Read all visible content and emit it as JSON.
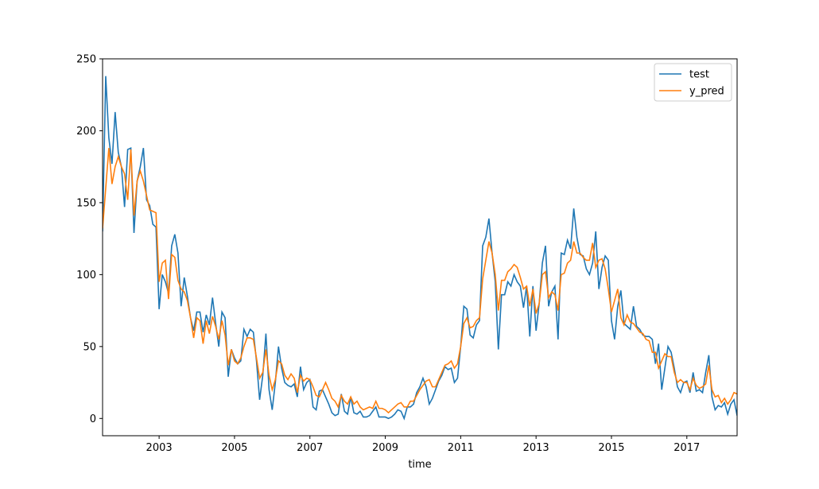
{
  "chart_data": {
    "type": "line",
    "xlabel": "time",
    "x": [
      "2001-07",
      "2001-08",
      "2001-09",
      "2001-10",
      "2001-11",
      "2001-12",
      "2002-01",
      "2002-02",
      "2002-03",
      "2002-04",
      "2002-05",
      "2002-06",
      "2002-07",
      "2002-08",
      "2002-09",
      "2002-10",
      "2002-11",
      "2002-12",
      "2003-01",
      "2003-02",
      "2003-03",
      "2003-04",
      "2003-05",
      "2003-06",
      "2003-07",
      "2003-08",
      "2003-09",
      "2003-10",
      "2003-11",
      "2003-12",
      "2004-01",
      "2004-02",
      "2004-03",
      "2004-04",
      "2004-05",
      "2004-06",
      "2004-07",
      "2004-08",
      "2004-09",
      "2004-10",
      "2004-11",
      "2004-12",
      "2005-01",
      "2005-02",
      "2005-03",
      "2005-04",
      "2005-05",
      "2005-06",
      "2005-07",
      "2005-08",
      "2005-09",
      "2005-10",
      "2005-11",
      "2005-12",
      "2006-01",
      "2006-02",
      "2006-03",
      "2006-04",
      "2006-05",
      "2006-06",
      "2006-07",
      "2006-08",
      "2006-09",
      "2006-10",
      "2006-11",
      "2006-12",
      "2007-01",
      "2007-02",
      "2007-03",
      "2007-04",
      "2007-05",
      "2007-06",
      "2007-07",
      "2007-08",
      "2007-09",
      "2007-10",
      "2007-11",
      "2007-12",
      "2008-01",
      "2008-02",
      "2008-03",
      "2008-04",
      "2008-05",
      "2008-06",
      "2008-07",
      "2008-08",
      "2008-09",
      "2008-10",
      "2008-11",
      "2008-12",
      "2009-01",
      "2009-02",
      "2009-03",
      "2009-04",
      "2009-05",
      "2009-06",
      "2009-07",
      "2009-08",
      "2009-09",
      "2009-10",
      "2009-11",
      "2009-12",
      "2010-01",
      "2010-02",
      "2010-03",
      "2010-04",
      "2010-05",
      "2010-06",
      "2010-07",
      "2010-08",
      "2010-09",
      "2010-10",
      "2010-11",
      "2010-12",
      "2011-01",
      "2011-02",
      "2011-03",
      "2011-04",
      "2011-05",
      "2011-06",
      "2011-07",
      "2011-08",
      "2011-09",
      "2011-10",
      "2011-11",
      "2011-12",
      "2012-01",
      "2012-02",
      "2012-03",
      "2012-04",
      "2012-05",
      "2012-06",
      "2012-07",
      "2012-08",
      "2012-09",
      "2012-10",
      "2012-11",
      "2012-12",
      "2013-01",
      "2013-02",
      "2013-03",
      "2013-04",
      "2013-05",
      "2013-06",
      "2013-07",
      "2013-08",
      "2013-09",
      "2013-10",
      "2013-11",
      "2013-12",
      "2014-01",
      "2014-02",
      "2014-03",
      "2014-04",
      "2014-05",
      "2014-06",
      "2014-07",
      "2014-08",
      "2014-09",
      "2014-10",
      "2014-11",
      "2014-12",
      "2015-01",
      "2015-02",
      "2015-03",
      "2015-04",
      "2015-05",
      "2015-06",
      "2015-07",
      "2015-08",
      "2015-09",
      "2015-10",
      "2015-11",
      "2015-12",
      "2016-01",
      "2016-02",
      "2016-03",
      "2016-04",
      "2016-05",
      "2016-06",
      "2016-07",
      "2016-08",
      "2016-09",
      "2016-10",
      "2016-11",
      "2016-12",
      "2017-01",
      "2017-02",
      "2017-03",
      "2017-04",
      "2017-05",
      "2017-06",
      "2017-07",
      "2017-08",
      "2017-09",
      "2017-10",
      "2017-11",
      "2017-12",
      "2018-01",
      "2018-02",
      "2018-03",
      "2018-04",
      "2018-05"
    ],
    "series": [
      {
        "name": "test",
        "color": "#1f77b4",
        "values": [
          130,
          238,
          195,
          177,
          213,
          185,
          175,
          147,
          187,
          188,
          129,
          165,
          175,
          188,
          152,
          148,
          135,
          133,
          76,
          100,
          95,
          87,
          120,
          128,
          115,
          78,
          98,
          85,
          70,
          61,
          74,
          74,
          60,
          72,
          65,
          84,
          66,
          50,
          74,
          70,
          29,
          48,
          42,
          38,
          40,
          62,
          57,
          62,
          60,
          40,
          13,
          30,
          59,
          20,
          6,
          25,
          50,
          35,
          25,
          23,
          22,
          24,
          15,
          36,
          20,
          25,
          27,
          8,
          6,
          19,
          20,
          15,
          10,
          4,
          2,
          3,
          17,
          5,
          3,
          15,
          4,
          3,
          5,
          1,
          1,
          2,
          5,
          8,
          1,
          1,
          1,
          0,
          1,
          3,
          6,
          5,
          0,
          8,
          8,
          10,
          18,
          22,
          28,
          22,
          10,
          14,
          20,
          26,
          30,
          36,
          34,
          35,
          25,
          28,
          50,
          78,
          76,
          58,
          56,
          65,
          68,
          120,
          126,
          139,
          115,
          95,
          48,
          86,
          86,
          95,
          92,
          100,
          95,
          92,
          77,
          92,
          57,
          92,
          61,
          80,
          108,
          120,
          78,
          88,
          92,
          55,
          115,
          114,
          124,
          118,
          146,
          126,
          114,
          113,
          104,
          100,
          108,
          130,
          90,
          105,
          113,
          110,
          68,
          55,
          78,
          89,
          66,
          64,
          62,
          78,
          64,
          62,
          58,
          57,
          57,
          55,
          38,
          52,
          20,
          35,
          50,
          46,
          35,
          22,
          18,
          25,
          26,
          18,
          32,
          19,
          20,
          18,
          32,
          44,
          15,
          6,
          9,
          8,
          11,
          3,
          10,
          13,
          2
        ]
      },
      {
        "name": "y_pred",
        "color": "#ff7f0e",
        "values": [
          132,
          160,
          188,
          163,
          175,
          182,
          175,
          170,
          152,
          187,
          141,
          165,
          172,
          165,
          155,
          145,
          144,
          143,
          95,
          108,
          110,
          83,
          114,
          112,
          96,
          90,
          88,
          82,
          70,
          56,
          70,
          68,
          52,
          68,
          59,
          71,
          64,
          55,
          68,
          58,
          37,
          48,
          40,
          38,
          42,
          50,
          56,
          56,
          55,
          42,
          28,
          32,
          48,
          30,
          20,
          27,
          40,
          38,
          30,
          27,
          31,
          28,
          18,
          30,
          26,
          28,
          27,
          22,
          16,
          15,
          20,
          25,
          20,
          14,
          12,
          8,
          16,
          12,
          10,
          15,
          10,
          12,
          8,
          6,
          7,
          8,
          7,
          12,
          7,
          7,
          6,
          4,
          6,
          8,
          10,
          11,
          8,
          8,
          12,
          12,
          16,
          20,
          23,
          26,
          27,
          22,
          22,
          27,
          32,
          37,
          38,
          40,
          35,
          38,
          50,
          66,
          70,
          63,
          64,
          68,
          70,
          97,
          110,
          123,
          115,
          100,
          75,
          96,
          96,
          102,
          104,
          107,
          105,
          98,
          90,
          92,
          78,
          90,
          73,
          80,
          100,
          102,
          84,
          88,
          86,
          75,
          100,
          101,
          108,
          110,
          123,
          115,
          115,
          112,
          110,
          110,
          122,
          105,
          110,
          111,
          104,
          90,
          74,
          82,
          90,
          70,
          65,
          72,
          67,
          66,
          63,
          60,
          59,
          55,
          54,
          46,
          46,
          35,
          40,
          45,
          43,
          43,
          32,
          25,
          27,
          25,
          25,
          20,
          28,
          23,
          21,
          22,
          24,
          37,
          20,
          15,
          16,
          11,
          14,
          10,
          13,
          18,
          17
        ]
      }
    ],
    "xlim": [
      "2001-07",
      "2018-05"
    ],
    "xticks": [
      "2003",
      "2005",
      "2007",
      "2009",
      "2011",
      "2013",
      "2015",
      "2017"
    ],
    "ylim": [
      -12,
      250
    ],
    "yticks": [
      0,
      50,
      100,
      150,
      200,
      250
    ],
    "grid": false,
    "legend": "upper right"
  }
}
